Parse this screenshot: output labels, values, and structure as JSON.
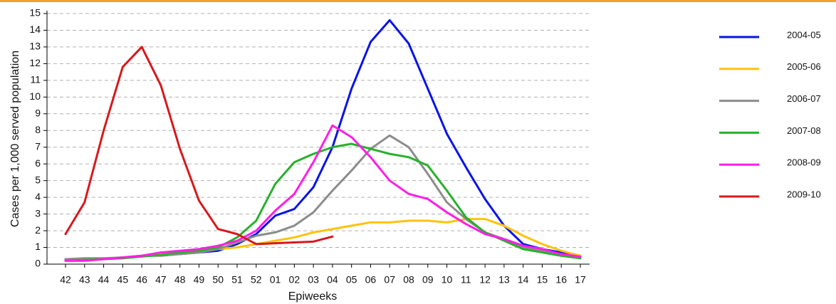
{
  "chart_data": {
    "type": "line",
    "x_label": "Epiweeks",
    "y_label": "Cases per 1,000 served population",
    "categories": [
      "42",
      "43",
      "44",
      "45",
      "46",
      "47",
      "48",
      "49",
      "50",
      "51",
      "52",
      "01",
      "02",
      "03",
      "04",
      "05",
      "06",
      "07",
      "08",
      "09",
      "10",
      "11",
      "12",
      "13",
      "14",
      "15",
      "16",
      "17"
    ],
    "ylim": [
      0,
      15
    ],
    "yticks": [
      0,
      1,
      2,
      3,
      4,
      5,
      6,
      7,
      8,
      9,
      10,
      11,
      12,
      13,
      14,
      15
    ],
    "grid": true,
    "legend": "right",
    "series": [
      {
        "name": "2004-05",
        "color": "#0a14e6",
        "values": [
          0.3,
          0.3,
          0.3,
          0.4,
          0.5,
          0.6,
          0.6,
          0.7,
          0.8,
          1.2,
          1.8,
          2.9,
          3.3,
          4.6,
          7.0,
          10.5,
          13.3,
          14.6,
          13.2,
          10.5,
          7.8,
          5.8,
          3.9,
          2.3,
          1.2,
          0.9,
          0.7,
          0.5
        ]
      },
      {
        "name": "2005-06",
        "color": "#ffc20e",
        "values": [
          0.2,
          0.2,
          0.3,
          0.4,
          0.5,
          0.6,
          0.6,
          0.7,
          0.9,
          1.0,
          1.2,
          1.4,
          1.6,
          1.9,
          2.1,
          2.3,
          2.5,
          2.5,
          2.6,
          2.6,
          2.5,
          2.7,
          2.7,
          2.3,
          1.7,
          1.2,
          0.8,
          0.5
        ]
      },
      {
        "name": "2006-07",
        "color": "#8c8c8c",
        "values": [
          0.3,
          0.35,
          0.35,
          0.4,
          0.5,
          0.5,
          0.6,
          0.7,
          0.9,
          1.3,
          1.7,
          1.9,
          2.3,
          3.1,
          4.4,
          5.6,
          6.9,
          7.7,
          7.0,
          5.4,
          3.7,
          2.7,
          1.9,
          1.5,
          1.0,
          0.8,
          0.6,
          0.4
        ]
      },
      {
        "name": "2007-08",
        "color": "#27b12b",
        "values": [
          0.2,
          0.25,
          0.3,
          0.35,
          0.45,
          0.55,
          0.7,
          0.8,
          1.0,
          1.6,
          2.6,
          4.8,
          6.1,
          6.6,
          7.0,
          7.2,
          6.9,
          6.6,
          6.4,
          5.9,
          4.4,
          2.8,
          1.9,
          1.4,
          0.9,
          0.7,
          0.5,
          0.35
        ]
      },
      {
        "name": "2008-09",
        "color": "#ff1ee6",
        "values": [
          0.2,
          0.2,
          0.3,
          0.4,
          0.5,
          0.7,
          0.8,
          0.9,
          1.1,
          1.4,
          2.0,
          3.2,
          4.2,
          6.1,
          8.3,
          7.6,
          6.4,
          5.0,
          4.2,
          3.9,
          3.1,
          2.4,
          1.8,
          1.5,
          1.1,
          0.9,
          0.6,
          0.45
        ]
      },
      {
        "name": "2009-10",
        "color": "#d7191c",
        "values": [
          1.8,
          3.7,
          8.0,
          11.8,
          13.0,
          10.7,
          6.9,
          3.8,
          2.1,
          1.8,
          1.2,
          1.25,
          1.3,
          1.35,
          1.65,
          null,
          null,
          null,
          null,
          null,
          null,
          null,
          null,
          null,
          null,
          null,
          null,
          null
        ]
      }
    ]
  }
}
